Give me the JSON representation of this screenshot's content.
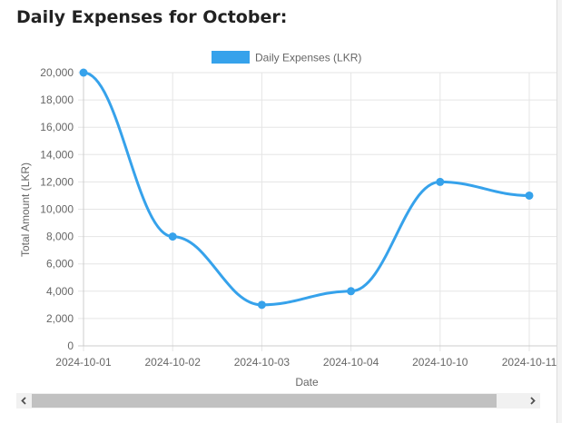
{
  "page": {
    "title": "Daily Expenses for October:"
  },
  "chart_data": {
    "type": "line",
    "title": "",
    "categories": [
      "2024-10-01",
      "2024-10-02",
      "2024-10-03",
      "2024-10-04",
      "2024-10-10",
      "2024-10-11"
    ],
    "series": [
      {
        "name": "Daily Expenses (LKR)",
        "values": [
          20000,
          8000,
          3000,
          4000,
          12000,
          11000
        ]
      }
    ],
    "xlabel": "Date",
    "ylabel": "Total Amount (LKR)",
    "ylim": [
      0,
      20000
    ],
    "yticks": [
      "0",
      "2,000",
      "4,000",
      "6,000",
      "8,000",
      "10,000",
      "12,000",
      "14,000",
      "16,000",
      "18,000",
      "20,000"
    ],
    "grid": true,
    "legend_position": "top",
    "colors": {
      "series": "#36a2eb",
      "grid": "#e5e5e5",
      "axis_text": "#666666"
    }
  },
  "scrollbar": {
    "left_icon": "chevron-left-icon",
    "right_icon": "chevron-right-icon"
  }
}
